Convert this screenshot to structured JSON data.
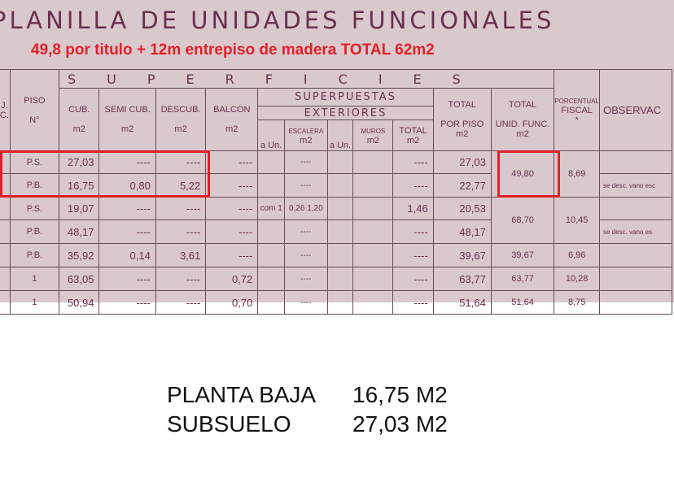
{
  "title": "PLANILLA DE UNIDADES FUNCIONALES",
  "note": "49,8 por titulo + 12m entrepiso de madera TOTAL 62m2",
  "header": {
    "superficies": "SUPERFICIES",
    "piso": "PISO",
    "piso_n": "N°",
    "cub": "CUB.",
    "semi": "SEMI CUB.",
    "descub": "DESCUB.",
    "balcon": "BALCON",
    "m2": "m2",
    "superpuestas": "SUPERPUESTAS",
    "exteriores": "EXTERIORES",
    "a_un": "a Un.",
    "escalera": "ESCALERA",
    "muros": "MUROS",
    "total": "TOTAL",
    "total_piso_1": "TOTAL",
    "total_piso_2": "POR PISO",
    "total_uf_1": "TOTAL",
    "total_uf_2": "UNID. FUNC.",
    "porcentual": "PORCENTUAL",
    "fiscal": "FISCAL",
    "fiscal_mark": "*",
    "observ": "OBSERVAC",
    "left_1": "J.",
    "left_2": "C."
  },
  "rows": [
    {
      "piso": "P.S.",
      "cub": "27,03",
      "semi": "----",
      "descub": "----",
      "balcon": "----",
      "aun": "",
      "esc": "----",
      "muros": "",
      "tot": "----",
      "tpiso": "27,03",
      "tuf": "49,80",
      "pct": "8,69",
      "obs": ""
    },
    {
      "piso": "P.B.",
      "cub": "16,75",
      "semi": "0,80",
      "descub": "5,22",
      "balcon": "----",
      "aun": "",
      "esc": "----",
      "muros": "",
      "tot": "----",
      "tpiso": "22,77",
      "obs": "se desc. vano esc"
    },
    {
      "piso": "P.S.",
      "cub": "19,07",
      "semi": "----",
      "descub": "----",
      "balcon": "----",
      "aun": "com 1",
      "esc": "0,26 1,20",
      "muros": "",
      "tot": "1,46",
      "tpiso": "20,53",
      "tuf": "68,70",
      "pct": "10,45",
      "obs": ""
    },
    {
      "piso": "P.B.",
      "cub": "48,17",
      "semi": "----",
      "descub": "----",
      "balcon": "----",
      "aun": "",
      "esc": "----",
      "muros": "",
      "tot": "----",
      "tpiso": "48,17",
      "obs": "se desc. vano es"
    },
    {
      "piso": "P.B.",
      "cub": "35,92",
      "semi": "0,14",
      "descub": "3,61",
      "balcon": "----",
      "aun": "",
      "esc": "----",
      "muros": "",
      "tot": "----",
      "tpiso": "39,67",
      "tuf": "39,67",
      "pct": "6,96",
      "obs": ""
    },
    {
      "piso": "1",
      "cub": "63,05",
      "semi": "----",
      "descub": "----",
      "balcon": "0,72",
      "aun": "",
      "esc": "----",
      "muros": "",
      "tot": "----",
      "tpiso": "63,77",
      "tuf": "63,77",
      "pct": "10,28",
      "obs": ""
    },
    {
      "piso": "1",
      "cub": "50,94",
      "semi": "----",
      "descub": "----",
      "balcon": "0,70",
      "aun": "",
      "esc": "----",
      "muros": "",
      "tot": "----",
      "tpiso": "51,64",
      "tuf": "51,64",
      "pct": "8,75",
      "obs": ""
    }
  ],
  "summary": [
    {
      "label": "PLANTA BAJA",
      "value": "16,75 M2"
    },
    {
      "label": "SUBSUELO",
      "value": "27,03 M2"
    }
  ],
  "colors": {
    "highlight": "#e0202a",
    "ink": "#6a2f4f",
    "paper": "#d9c9cc"
  }
}
